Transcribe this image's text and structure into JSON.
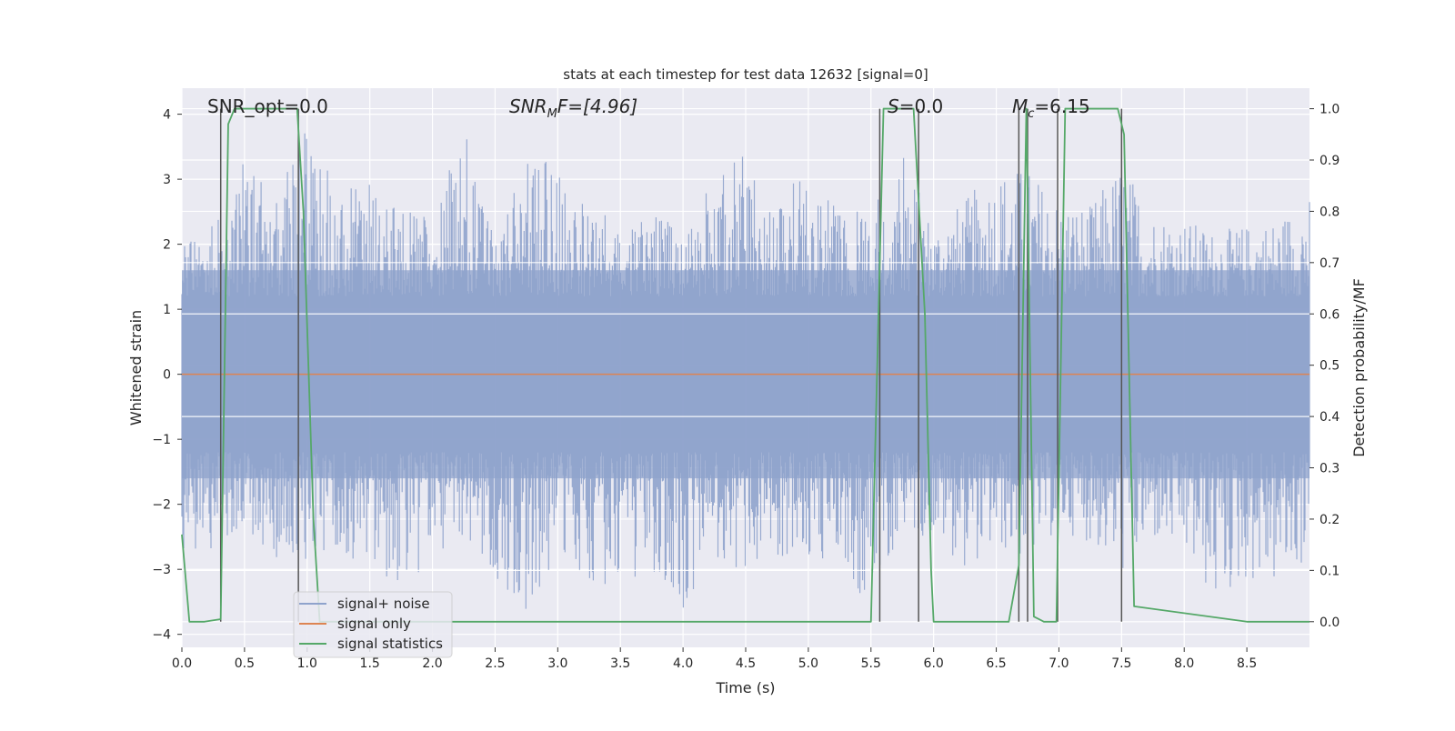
{
  "chart_data": {
    "type": "line",
    "title": "stats at each timestep for test data 12632 [signal=0]",
    "xlabel": "Time (s)",
    "ylabel": "Whitened strain",
    "ylabel_right": "Detection probability/MF",
    "xlim": [
      0.0,
      9.0
    ],
    "ylim": [
      -4.2,
      4.4
    ],
    "ylim_right": [
      -0.05,
      1.04
    ],
    "x_ticks": [
      "0.0",
      "0.5",
      "1.0",
      "1.5",
      "2.0",
      "2.5",
      "3.0",
      "3.5",
      "4.0",
      "4.5",
      "5.0",
      "5.5",
      "6.0",
      "6.5",
      "7.0",
      "7.5",
      "8.0",
      "8.5"
    ],
    "y_ticks": [
      "−4",
      "−3",
      "−2",
      "−1",
      "0",
      "1",
      "2",
      "3",
      "4"
    ],
    "y_right_ticks": [
      "0.0",
      "0.1",
      "0.2",
      "0.3",
      "0.4",
      "0.5",
      "0.6",
      "0.7",
      "0.8",
      "0.9",
      "1.0"
    ],
    "grid": true,
    "legend_position": "bottom-left",
    "annotations": {
      "snr_opt": "SNR_opt=0.0",
      "snr_mf_main": "SNR",
      "snr_mf_sub": "M",
      "snr_mf_rest": "F=[4.96]",
      "s_main": "S",
      "s_rest": "=0.0",
      "mc_main": "M",
      "mc_sub": "c",
      "mc_rest": "=6.15"
    },
    "series": [
      {
        "name": "signal+ noise",
        "color": "#8fa3cc",
        "envelope": {
          "x": [
            0.0,
            0.25,
            0.5,
            0.75,
            1.0,
            1.25,
            1.5,
            1.75,
            2.0,
            2.25,
            2.5,
            2.75,
            3.0,
            3.25,
            3.5,
            3.75,
            4.0,
            4.25,
            4.5,
            4.75,
            5.0,
            5.25,
            5.5,
            5.75,
            6.0,
            6.25,
            6.5,
            6.75,
            7.0,
            7.25,
            7.5,
            7.75,
            8.0,
            8.25,
            8.5,
            8.75,
            9.0
          ],
          "upper": [
            2.0,
            2.3,
            3.3,
            2.8,
            3.8,
            2.8,
            3.0,
            2.6,
            2.4,
            3.8,
            2.0,
            3.4,
            3.2,
            2.7,
            2.3,
            2.6,
            2.2,
            3.0,
            3.6,
            2.8,
            3.2,
            2.5,
            2.6,
            3.5,
            2.3,
            2.7,
            3.2,
            3.2,
            2.7,
            2.6,
            3.3,
            2.5,
            2.4,
            2.2,
            2.3,
            2.4,
            2.8
          ],
          "lower": [
            -2.9,
            -2.7,
            -2.4,
            -3.0,
            -2.9,
            -2.7,
            -3.0,
            -3.3,
            -2.9,
            -2.6,
            -3.1,
            -3.7,
            -2.8,
            -3.2,
            -3.4,
            -3.0,
            -3.6,
            -2.9,
            -3.1,
            -2.8,
            -2.9,
            -3.0,
            -3.6,
            -2.5,
            -2.5,
            -3.0,
            -2.7,
            -2.9,
            -2.4,
            -2.6,
            -3.1,
            -2.6,
            -2.8,
            -3.6,
            -3.2,
            -3.3,
            -2.9
          ]
        }
      },
      {
        "name": "signal only",
        "color": "#dd8452",
        "x": [
          0.0,
          9.0
        ],
        "y": [
          0.0,
          0.0
        ]
      },
      {
        "name": "signal statistics",
        "color": "#55a868",
        "axis": "right",
        "x": [
          0.0,
          0.06,
          0.18,
          0.31,
          0.37,
          0.42,
          0.92,
          0.97,
          1.05,
          1.1,
          5.5,
          5.6,
          5.84,
          5.93,
          5.98,
          6.0,
          6.6,
          6.68,
          6.74,
          6.8,
          6.88,
          6.98,
          7.05,
          7.47,
          7.52,
          7.6,
          8.5,
          9.0
        ],
        "y": [
          0.17,
          0.0,
          0.0,
          0.005,
          0.97,
          1.0,
          1.0,
          0.8,
          0.2,
          0.0,
          0.0,
          1.0,
          1.0,
          0.6,
          0.1,
          0.0,
          0.0,
          0.11,
          1.0,
          0.01,
          0.0,
          0.0,
          1.0,
          1.0,
          0.95,
          0.03,
          0.0,
          0.0
        ]
      }
    ],
    "vertical_markers_x": [
      0.31,
      0.93,
      5.57,
      5.88,
      6.68,
      6.75,
      6.99,
      7.5
    ]
  }
}
